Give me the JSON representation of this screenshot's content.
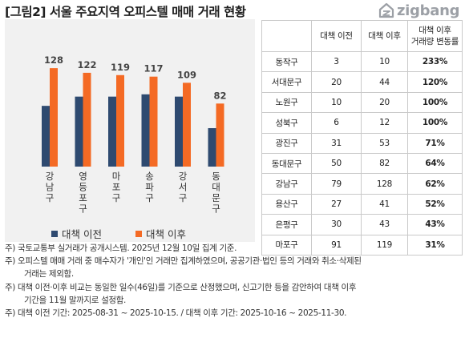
{
  "title": "[그림2] 서울 주요지역 오피스텔 매매 거래 현황",
  "logo": {
    "text": "zigbang",
    "icon": "zigbang-logo-icon"
  },
  "colors": {
    "before": "#2e4a70",
    "after": "#f46a24",
    "panel": "#f1f1f1"
  },
  "chart_data": {
    "type": "bar",
    "categories": [
      "강남구",
      "영등포구",
      "마포구",
      "송파구",
      "강서구",
      "동대문구"
    ],
    "series": [
      {
        "name": "대책 이전",
        "values": [
          79,
          91,
          91,
          94,
          91,
          50
        ]
      },
      {
        "name": "대책 이후",
        "values": [
          128,
          122,
          119,
          117,
          109,
          82
        ]
      }
    ],
    "data_labels": [
      "128",
      "122",
      "119",
      "117",
      "109",
      "82"
    ],
    "ylim": [
      0,
      150
    ],
    "grid": false,
    "legend": "bottom"
  },
  "table": {
    "headers": [
      "",
      "대책 이전",
      "대책 이후",
      "대책 이후"
    ],
    "header_sub": "거래량 변동률",
    "rows": [
      [
        "동작구",
        "3",
        "10",
        "233%"
      ],
      [
        "서대문구",
        "20",
        "44",
        "120%"
      ],
      [
        "노원구",
        "10",
        "20",
        "100%"
      ],
      [
        "성북구",
        "6",
        "12",
        "100%"
      ],
      [
        "광진구",
        "31",
        "53",
        "71%"
      ],
      [
        "동대문구",
        "50",
        "82",
        "64%"
      ],
      [
        "강남구",
        "79",
        "128",
        "62%"
      ],
      [
        "용산구",
        "27",
        "41",
        "52%"
      ],
      [
        "은평구",
        "30",
        "43",
        "43%"
      ],
      [
        "마포구",
        "91",
        "119",
        "31%"
      ]
    ]
  },
  "notes": [
    {
      "line1": "주) 국토교통부 실거래가 공개시스템. 2025년 12월 10일 집계 기준.",
      "line2": ""
    },
    {
      "line1": "주) 오피스텔 매매 거래 중 매수자가 '개인'인 거래만 집계하였으며, 공공기관·법인 등의 거래와 취소·삭제된",
      "line2": "거래는 제외함."
    },
    {
      "line1": "주) 대책 이전·이후 비교는 동일한 일수(46일)를 기준으로 산정했으며, 신고기한 등을 감안하여 대책 이후",
      "line2": "기간을 11월 말까지로 설정함."
    },
    {
      "line1": "주) 대책 이전 기간: 2025-08-31 ~ 2025-10-15. / 대책 이후 기간: 2025-10-16 ~ 2025-11-30.",
      "line2": ""
    }
  ]
}
